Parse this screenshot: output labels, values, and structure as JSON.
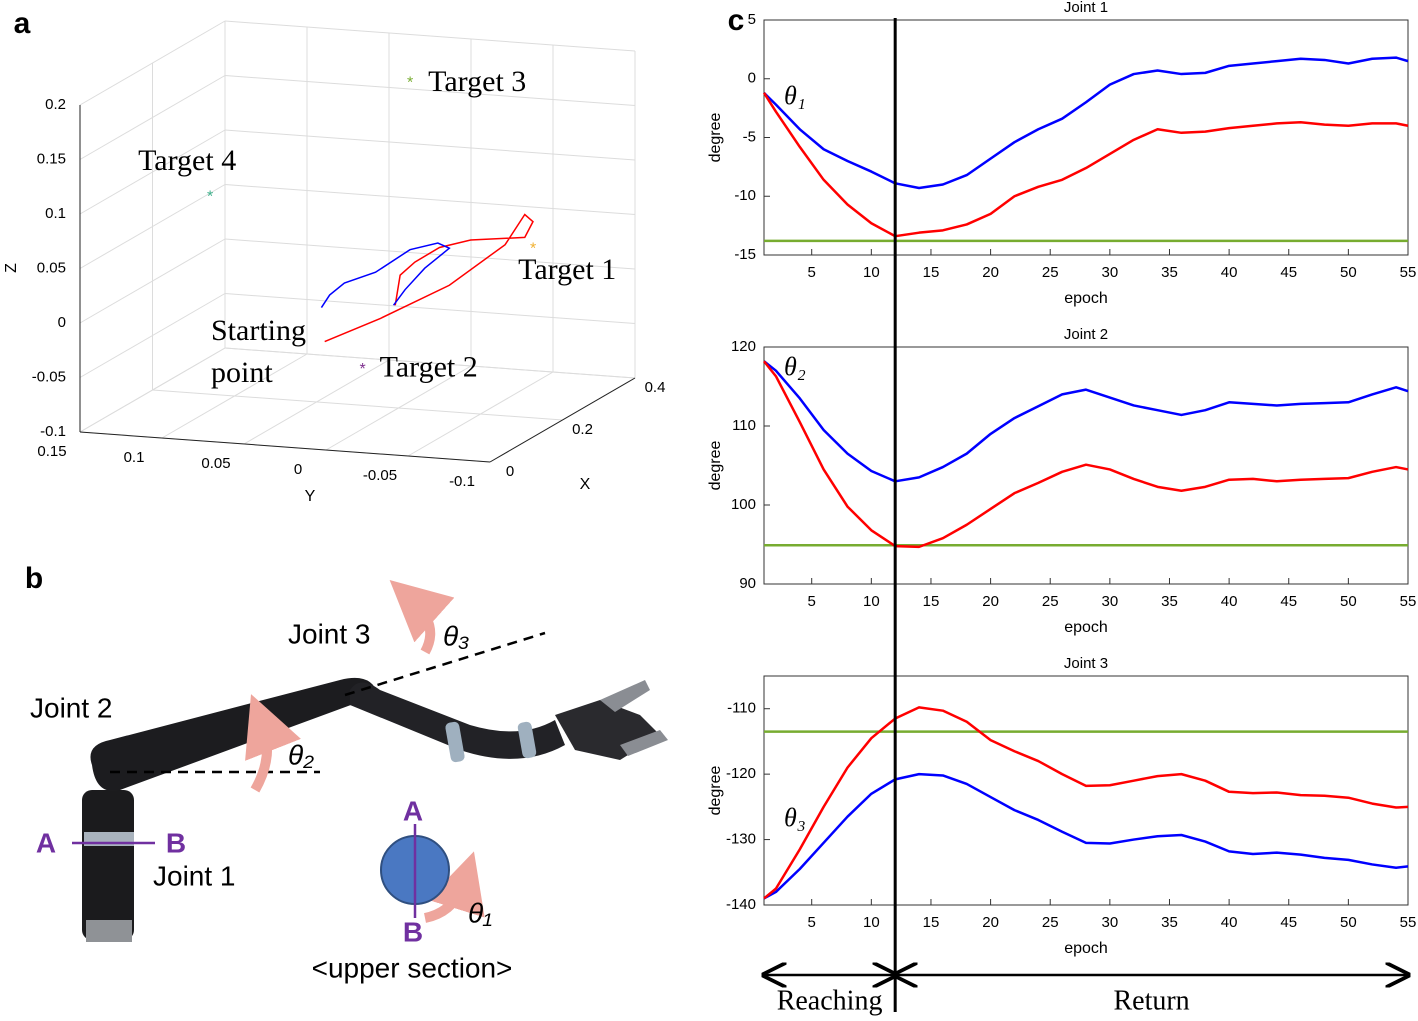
{
  "panel_labels": [
    "a",
    "b",
    "c"
  ],
  "diagram": {
    "joint_labels": [
      "Joint 1",
      "Joint 2",
      "Joint 3"
    ],
    "section_labels": [
      "A",
      "B"
    ],
    "angle_labels": [
      "θ₁",
      "θ₂",
      "θ₃"
    ],
    "caption": "<upper section>"
  },
  "phases": [
    {
      "label": "Reaching",
      "from": 1,
      "to": 12
    },
    {
      "label": "Return",
      "from": 12,
      "to": 55
    }
  ],
  "chart_data": [
    {
      "type": "line3d",
      "xlabel": "X",
      "ylabel": "Y",
      "zlabel": "Z",
      "xlim": [
        0,
        0.4
      ],
      "ylim": [
        -0.1,
        0.15
      ],
      "zlim": [
        -0.1,
        0.2
      ],
      "xticks": [
        0,
        0.2,
        0.4
      ],
      "yticks": [
        -0.1,
        -0.05,
        0,
        0.05,
        0.1,
        0.15
      ],
      "zticks": [
        -0.1,
        -0.05,
        0,
        0.05,
        0.1,
        0.15,
        0.2
      ],
      "grid": true,
      "series": [
        {
          "color": "#ff0000",
          "x": [
            0.2,
            0.2,
            0.2,
            0.2,
            0.2,
            0.2,
            0.2,
            0.2,
            0.2,
            0.2,
            0.2,
            0.2
          ],
          "y": [
            0.045,
            0.011,
            -0.031,
            -0.065,
            -0.077,
            -0.082,
            -0.077,
            -0.044,
            -0.025,
            -0.01,
            -0.001,
            0.002
          ],
          "z": [
            -0.044,
            -0.019,
            0.016,
            0.057,
            0.086,
            0.08,
            0.065,
            0.059,
            0.05,
            0.035,
            0.022,
            -0.006
          ]
        },
        {
          "color": "#0000ff",
          "x": [
            0.2,
            0.2,
            0.2,
            0.2,
            0.2,
            0.2,
            0.2,
            0.2,
            0.2,
            0.2
          ],
          "y": [
            0.047,
            0.042,
            0.033,
            0.014,
            -0.007,
            -0.024,
            -0.031,
            -0.016,
            -0.004,
            0.003
          ],
          "z": [
            -0.013,
            -0.001,
            0.011,
            0.023,
            0.046,
            0.054,
            0.05,
            0.03,
            0.009,
            -0.006
          ]
        }
      ],
      "points": [
        {
          "name": "Target 1",
          "color": "#f0b030",
          "x": 0.3,
          "y": -0.06,
          "z": 0.035
        },
        {
          "name": "Target 2",
          "color": "#7e2f8e",
          "x": 0.3,
          "y": 0.044,
          "z": -0.087
        },
        {
          "name": "Target 3",
          "color": "#77ac30",
          "x": 0.3,
          "y": 0.015,
          "z": 0.179
        },
        {
          "name": "Target 4",
          "color": "#3cb08a",
          "x": 0.3,
          "y": 0.137,
          "z": 0.061
        }
      ],
      "annotation": [
        "Starting",
        "point"
      ]
    },
    {
      "type": "line",
      "title": "Joint 1",
      "xlabel": "epoch",
      "ylabel": "degree",
      "annotation": "θ₁",
      "xlim": [
        1,
        55
      ],
      "xticks": [
        5,
        10,
        15,
        20,
        25,
        30,
        35,
        40,
        45,
        50,
        55
      ],
      "ylim": [
        -15,
        5
      ],
      "yticks": [
        -15,
        -10,
        -5,
        0,
        5
      ],
      "x": [
        1,
        2,
        4,
        6,
        8,
        10,
        12,
        14,
        16,
        18,
        20,
        22,
        24,
        26,
        28,
        30,
        32,
        34,
        36,
        38,
        40,
        42,
        44,
        46,
        48,
        50,
        52,
        54,
        55
      ],
      "series": [
        {
          "color": "#0000ff",
          "values": [
            -1.2,
            -2.2,
            -4.3,
            -6.0,
            -7.0,
            -7.9,
            -8.9,
            -9.3,
            -9.0,
            -8.2,
            -6.8,
            -5.4,
            -4.3,
            -3.4,
            -2.0,
            -0.5,
            0.4,
            0.7,
            0.4,
            0.5,
            1.1,
            1.3,
            1.5,
            1.7,
            1.6,
            1.3,
            1.7,
            1.8,
            1.5
          ]
        },
        {
          "color": "#ff0000",
          "values": [
            -1.2,
            -2.8,
            -5.8,
            -8.6,
            -10.7,
            -12.3,
            -13.4,
            -13.1,
            -12.9,
            -12.4,
            -11.5,
            -10.0,
            -9.2,
            -8.6,
            -7.6,
            -6.4,
            -5.2,
            -4.3,
            -4.6,
            -4.5,
            -4.2,
            -4.0,
            -3.8,
            -3.7,
            -3.9,
            -4.0,
            -3.8,
            -3.8,
            -4.0
          ]
        }
      ],
      "hlines": [
        {
          "value": -13.8,
          "color": "#77ac30"
        }
      ]
    },
    {
      "type": "line",
      "title": "Joint 2",
      "xlabel": "epoch",
      "ylabel": "degree",
      "annotation": "θ₂",
      "xlim": [
        1,
        55
      ],
      "xticks": [
        5,
        10,
        15,
        20,
        25,
        30,
        35,
        40,
        45,
        50,
        55
      ],
      "ylim": [
        90,
        120
      ],
      "yticks": [
        90,
        100,
        110,
        120
      ],
      "x": [
        1,
        2,
        4,
        6,
        8,
        10,
        12,
        14,
        16,
        18,
        20,
        22,
        24,
        26,
        28,
        30,
        32,
        34,
        36,
        38,
        40,
        42,
        44,
        46,
        48,
        50,
        52,
        54,
        55
      ],
      "series": [
        {
          "color": "#0000ff",
          "values": [
            118.2,
            117,
            113.5,
            109.5,
            106.5,
            104.3,
            103,
            103.5,
            104.8,
            106.5,
            109,
            111,
            112.5,
            114,
            114.6,
            113.6,
            112.6,
            112,
            111.4,
            112,
            113,
            112.8,
            112.6,
            112.8,
            112.9,
            113,
            114,
            114.9,
            114.4
          ]
        },
        {
          "color": "#ff0000",
          "values": [
            118.2,
            116.3,
            110.5,
            104.5,
            99.8,
            96.8,
            94.8,
            94.7,
            95.8,
            97.5,
            99.5,
            101.5,
            102.8,
            104.2,
            105.1,
            104.5,
            103.3,
            102.3,
            101.8,
            102.3,
            103.2,
            103.3,
            103,
            103.2,
            103.3,
            103.4,
            104.2,
            104.8,
            104.5
          ]
        }
      ],
      "hlines": [
        {
          "value": 94.9,
          "color": "#77ac30"
        }
      ]
    },
    {
      "type": "line",
      "title": "Joint 3",
      "xlabel": "epoch",
      "ylabel": "degree",
      "annotation": "θ₃",
      "xlim": [
        1,
        55
      ],
      "xticks": [
        5,
        10,
        15,
        20,
        25,
        30,
        35,
        40,
        45,
        50,
        55
      ],
      "ylim": [
        -140,
        -105
      ],
      "yticks": [
        -140,
        -130,
        -120,
        -110
      ],
      "x": [
        1,
        2,
        4,
        6,
        8,
        10,
        12,
        14,
        16,
        18,
        20,
        22,
        24,
        26,
        28,
        30,
        32,
        34,
        36,
        38,
        40,
        42,
        44,
        46,
        48,
        50,
        52,
        54,
        55
      ],
      "series": [
        {
          "color": "#0000ff",
          "values": [
            -139,
            -138,
            -134.5,
            -130.5,
            -126.5,
            -123,
            -120.8,
            -120,
            -120.2,
            -121.5,
            -123.5,
            -125.5,
            -127,
            -128.8,
            -130.5,
            -130.6,
            -130,
            -129.5,
            -129.3,
            -130.3,
            -131.8,
            -132.2,
            -132,
            -132.3,
            -132.8,
            -133.1,
            -133.8,
            -134.3,
            -134.1
          ]
        },
        {
          "color": "#ff0000",
          "values": [
            -139,
            -137.5,
            -131.5,
            -125,
            -119,
            -114.5,
            -111.5,
            -109.8,
            -110.3,
            -112,
            -114.8,
            -116.5,
            -118,
            -120,
            -121.8,
            -121.7,
            -121,
            -120.3,
            -120,
            -121,
            -122.7,
            -122.9,
            -122.8,
            -123.2,
            -123.3,
            -123.6,
            -124.5,
            -125.1,
            -125
          ]
        }
      ],
      "hlines": [
        {
          "value": -113.5,
          "color": "#77ac30"
        }
      ]
    }
  ]
}
